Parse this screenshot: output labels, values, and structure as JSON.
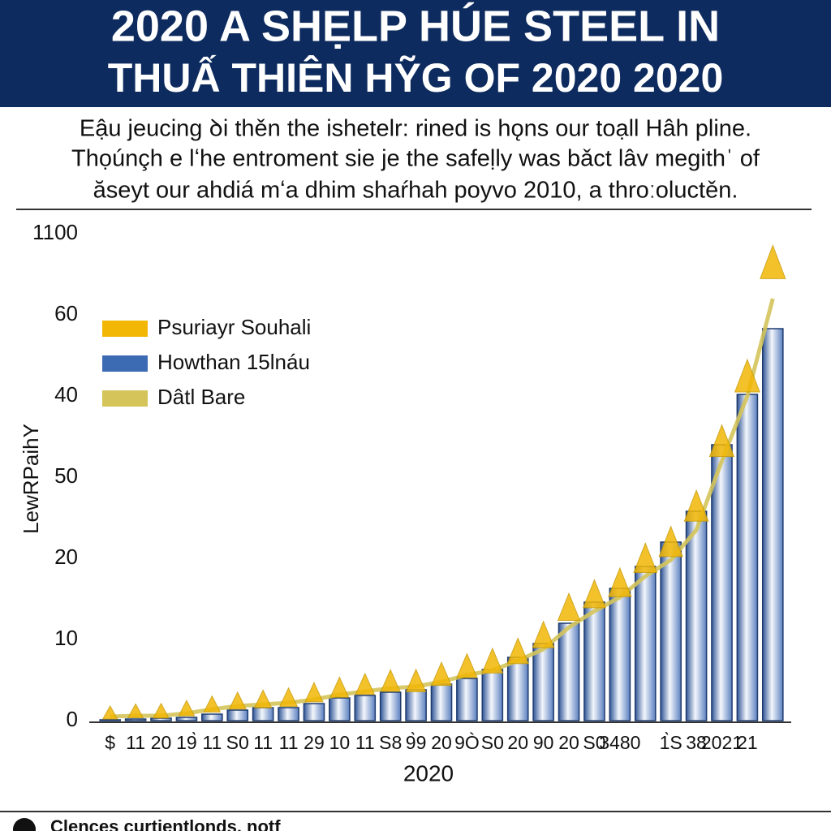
{
  "chart_data": {
    "type": "bar",
    "title": [
      "2020 A SHẸLP HÚE STEEL IN",
      "THUẤ THIÊN HỸG OF 2020 2020"
    ],
    "subtitle": [
      "Eậu jeucing ꝺi thěn the ishetelr: rined is hǫns our toạll Hâh pline.",
      "Thọúnçh e lʻhe entroment sie je the safeḷly was bǎct lâv megithˈ of",
      "ăseyt our ahdiá mʻa dhim shaŕhah poyvo 2010, a throːoluctěn."
    ],
    "y_label": "LewRPaihY",
    "x_label": "2020",
    "footer": "Clences curtientlonds. notf",
    "categories": [
      "$",
      "11",
      "20",
      "19̀",
      "11",
      "S0",
      "11",
      "11",
      "29",
      "10",
      "11",
      "S8",
      "9̀9",
      "20",
      "9Ò",
      "S0",
      "20",
      "90",
      "20",
      "S0",
      "3480",
      null,
      "1̀S",
      "38",
      "2021",
      "21",
      null
    ],
    "series": [
      {
        "name": "Psuriayr Souhali",
        "type": "scatter",
        "color": "#f2b705",
        "values": [
          0.8,
          1,
          1,
          1.3,
          1.8,
          2.2,
          2.4,
          2.6,
          3.2,
          3.8,
          4.2,
          4.6,
          4.6,
          5.4,
          6.4,
          7,
          8.2,
          10.2,
          13.6,
          15.2,
          16.6,
          19.6,
          21.6,
          26,
          34,
          42,
          56
        ]
      },
      {
        "name": "Howthan 15lnáu",
        "type": "bar",
        "color": "#3d6bb3",
        "values": [
          0.1,
          0.2,
          0.3,
          0.4,
          0.8,
          1.3,
          1.6,
          1.6,
          2.1,
          2.8,
          3.1,
          3.5,
          3.8,
          4.5,
          5.2,
          6.3,
          7.8,
          9.5,
          12,
          14.6,
          16.3,
          19,
          22,
          25.8,
          34,
          40.2,
          48.3
        ]
      },
      {
        "name": "Dâtl Bare",
        "type": "line",
        "color": "#d4c45a",
        "values": [
          0.5,
          0.6,
          0.6,
          0.9,
          1.4,
          1.8,
          2,
          2.2,
          2.6,
          3.2,
          3.6,
          4,
          4.2,
          4.8,
          5.6,
          6.2,
          7.4,
          8.8,
          11.5,
          13.5,
          15.2,
          17.8,
          19.8,
          23.5,
          32,
          40,
          52
        ]
      }
    ],
    "ylim": [
      0,
      60
    ],
    "yticks": [
      0,
      10,
      20,
      {
        "value": 30,
        "label": "50"
      },
      40,
      {
        "value": 50,
        "label": "60"
      },
      {
        "value": 60,
        "label": "1100"
      }
    ],
    "legend": "upper left",
    "grid": false
  }
}
